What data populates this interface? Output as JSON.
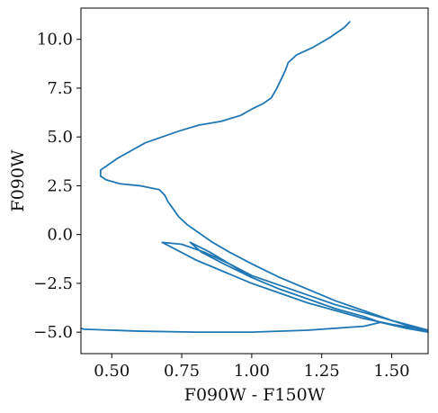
{
  "chart_data": {
    "type": "line",
    "xlabel": "F090W - F150W",
    "ylabel": "F090W",
    "xlim": [
      0.39,
      1.63
    ],
    "ylim": [
      11.6,
      -6.1
    ],
    "y_inverted": true,
    "grid": false,
    "legend": "none",
    "xticks": [
      0.5,
      0.75,
      1.0,
      1.25,
      1.5
    ],
    "xtick_labels": [
      "0.50",
      "0.75",
      "1.00",
      "1.25",
      "1.50"
    ],
    "yticks": [
      -5.0,
      -2.5,
      0.0,
      2.5,
      5.0,
      7.5,
      10.0
    ],
    "ytick_labels": [
      "−5.0",
      "−2.5",
      "0.0",
      "2.5",
      "5.0",
      "7.5",
      "10.0"
    ],
    "series": [
      {
        "color": "#1f77b4",
        "x": [
          1.35,
          1.33,
          1.28,
          1.22,
          1.16,
          1.13,
          1.12,
          1.11,
          1.1,
          1.09,
          1.07,
          1.04,
          1.01,
          0.96,
          0.89,
          0.81,
          0.74,
          0.68,
          0.62,
          0.57,
          0.52,
          0.48,
          0.46,
          0.46,
          0.48,
          0.53,
          0.6,
          0.67,
          0.69,
          0.7,
          0.72,
          0.74,
          0.77,
          0.81,
          0.86,
          0.92,
          1.0,
          1.1,
          1.2,
          1.3,
          1.4,
          1.5,
          1.63,
          1.55,
          1.46,
          1.4,
          1.3,
          1.2,
          1.1,
          1.0,
          0.9,
          0.82,
          0.78,
          0.85,
          0.92,
          1.0,
          1.1,
          1.2,
          1.3,
          1.4,
          1.5,
          1.63,
          1.5,
          1.4,
          1.3,
          1.2,
          1.1,
          1.0,
          0.9,
          0.8,
          0.72,
          0.68,
          0.75,
          0.83,
          0.92,
          1.0,
          1.1,
          1.2,
          1.3,
          1.4,
          1.46,
          1.4,
          1.2,
          1.0,
          0.8,
          0.6,
          0.4,
          0.39
        ],
        "y": [
          10.9,
          10.6,
          10.1,
          9.6,
          9.2,
          8.8,
          8.4,
          8.1,
          7.8,
          7.5,
          7.0,
          6.7,
          6.5,
          6.1,
          5.8,
          5.6,
          5.3,
          5.0,
          4.7,
          4.3,
          3.9,
          3.5,
          3.3,
          3.0,
          2.8,
          2.6,
          2.5,
          2.3,
          2.0,
          1.7,
          1.3,
          0.9,
          0.5,
          0.1,
          -0.4,
          -0.9,
          -1.5,
          -2.2,
          -2.8,
          -3.4,
          -3.9,
          -4.4,
          -5.0,
          -4.8,
          -4.5,
          -4.2,
          -3.8,
          -3.3,
          -2.8,
          -2.2,
          -1.5,
          -0.9,
          -0.4,
          -0.9,
          -1.5,
          -2.1,
          -2.6,
          -3.1,
          -3.6,
          -4.0,
          -4.4,
          -4.9,
          -4.6,
          -4.3,
          -3.9,
          -3.5,
          -3.0,
          -2.5,
          -1.9,
          -1.3,
          -0.7,
          -0.4,
          -0.5,
          -0.9,
          -1.5,
          -2.2,
          -2.8,
          -3.3,
          -3.8,
          -4.2,
          -4.5,
          -4.7,
          -4.9,
          -5.0,
          -5.0,
          -4.95,
          -4.85,
          -4.8
        ]
      }
    ]
  }
}
